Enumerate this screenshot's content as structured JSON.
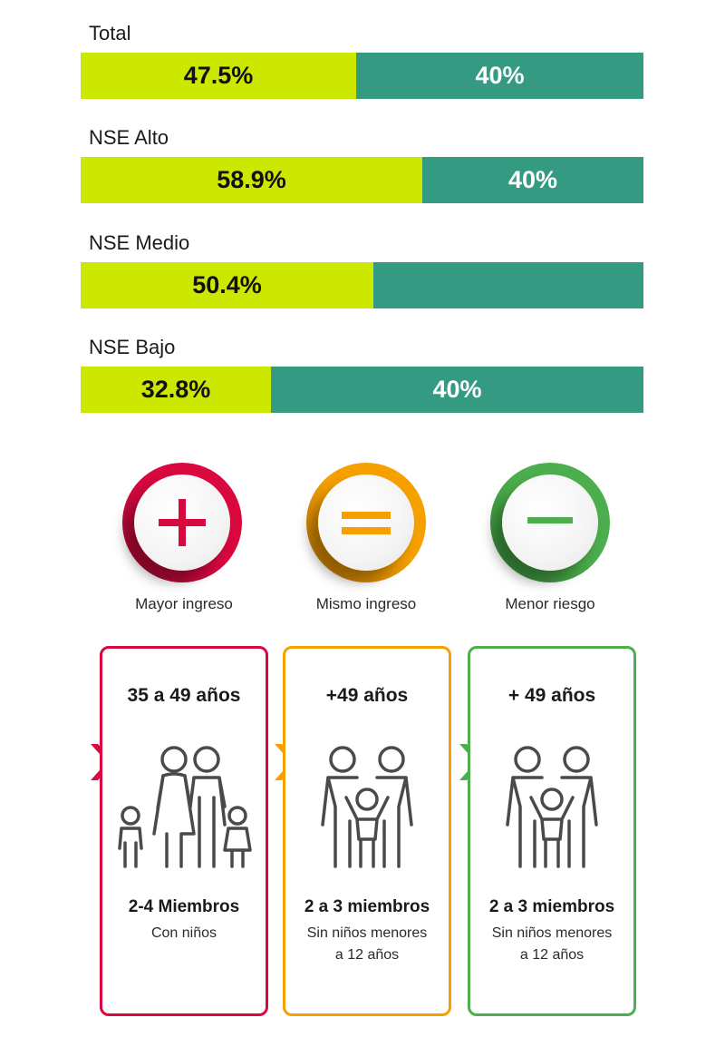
{
  "chart_data": {
    "type": "bar",
    "categories": [
      "Total",
      "NSE Alto",
      "NSE Medio",
      "NSE Bajo"
    ],
    "series": [
      {
        "values": [
          47.5,
          58.9,
          50.4,
          32.8
        ],
        "labels": [
          "47.5%",
          "58.9%",
          "50.4%",
          "32.8%"
        ],
        "color": "#cde800"
      },
      {
        "values": [
          40,
          40,
          40,
          40
        ],
        "labels": [
          "40%",
          "40%",
          "",
          "40%"
        ],
        "color": "#349a82"
      }
    ]
  },
  "scale_max": 97,
  "circles": [
    {
      "caption": "Mayor ingreso",
      "icon": "plus-icon",
      "color": "#d9083f",
      "dark": "#8d0a2c"
    },
    {
      "caption": "Mismo ingreso",
      "icon": "equals-icon",
      "color": "#f6a000",
      "dark": "#a86a00"
    },
    {
      "caption": "Menor riesgo",
      "icon": "minus-icon",
      "color": "#4cae4c",
      "dark": "#2e7a2e"
    }
  ],
  "cards": [
    {
      "age": "35 a 49 años",
      "members": "2-4 Miembros",
      "desc1": "Con niños",
      "desc2": "",
      "color": "#d9083f",
      "icon": "family-with-children-icon"
    },
    {
      "age": "+49 años",
      "members": "2 a 3 miembros",
      "desc1": "Sin niños menores",
      "desc2": "a 12 años",
      "color": "#f6a000",
      "icon": "family-couple-child-icon"
    },
    {
      "age": "+ 49 años",
      "members": "2 a 3 miembros",
      "desc1": "Sin niños menores",
      "desc2": "a 12 años",
      "color": "#4cae4c",
      "icon": "family-couple-child-icon"
    }
  ]
}
